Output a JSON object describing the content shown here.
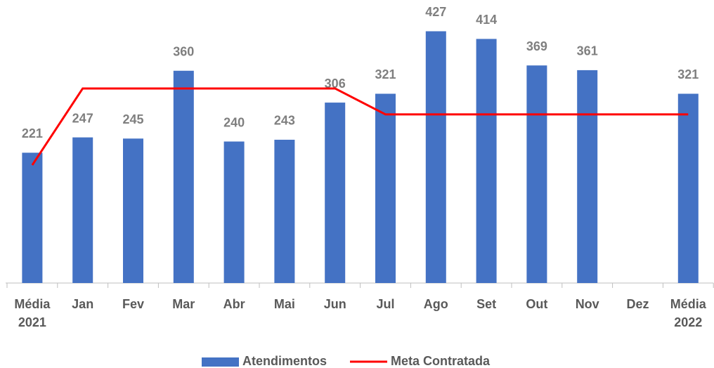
{
  "chart_data": {
    "type": "bar_line",
    "categories": [
      "Média 2021",
      "Jan",
      "Fev",
      "Mar",
      "Abr",
      "Mai",
      "Jun",
      "Jul",
      "Ago",
      "Set",
      "Out",
      "Nov",
      "Dez",
      "Média 2022"
    ],
    "ylim": [
      0,
      480
    ],
    "legend": "bottom",
    "series": [
      {
        "name": "Atendimentos",
        "type": "bar",
        "color": "#4472c4",
        "values": [
          221,
          247,
          245,
          360,
          240,
          243,
          306,
          321,
          427,
          414,
          369,
          361,
          null,
          321
        ]
      },
      {
        "name": "Meta Contratada",
        "type": "line",
        "color": "#ff0000",
        "values": [
          200,
          330,
          330,
          330,
          330,
          330,
          330,
          286,
          286,
          286,
          286,
          286,
          286,
          286
        ]
      }
    ]
  }
}
